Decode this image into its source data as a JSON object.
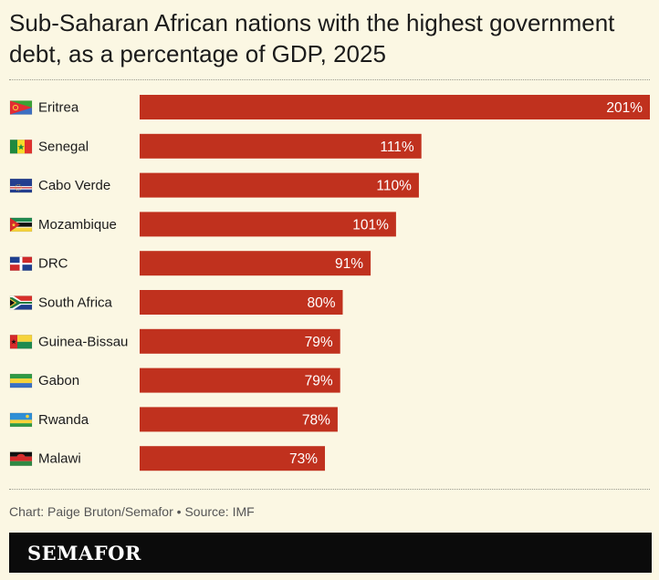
{
  "chart_data": {
    "type": "bar",
    "orientation": "horizontal",
    "title": "Sub-Saharan African nations with the highest government debt, as a percentage of GDP, 2025",
    "categories": [
      "Eritrea",
      "Senegal",
      "Cabo Verde",
      "Mozambique",
      "DRC",
      "South Africa",
      "Guinea-Bissau",
      "Gabon",
      "Rwanda",
      "Malawi"
    ],
    "values": [
      201,
      111,
      110,
      101,
      91,
      80,
      79,
      79,
      78,
      73
    ],
    "value_labels": [
      "201%",
      "111%",
      "110%",
      "101%",
      "91%",
      "80%",
      "79%",
      "79%",
      "78%",
      "73%"
    ],
    "flag_icons": [
      "eritrea-flag-icon",
      "senegal-flag-icon",
      "cabo-verde-flag-icon",
      "mozambique-flag-icon",
      "drc-flag-icon",
      "south-africa-flag-icon",
      "guinea-bissau-flag-icon",
      "gabon-flag-icon",
      "rwanda-flag-icon",
      "malawi-flag-icon"
    ],
    "unit": "%",
    "xlim": [
      0,
      201
    ],
    "bar_color": "#c0311e",
    "grid": false
  },
  "credit": "Chart: Paige Bruton/Semafor • Source: IMF",
  "brand": "SEMAFOR"
}
